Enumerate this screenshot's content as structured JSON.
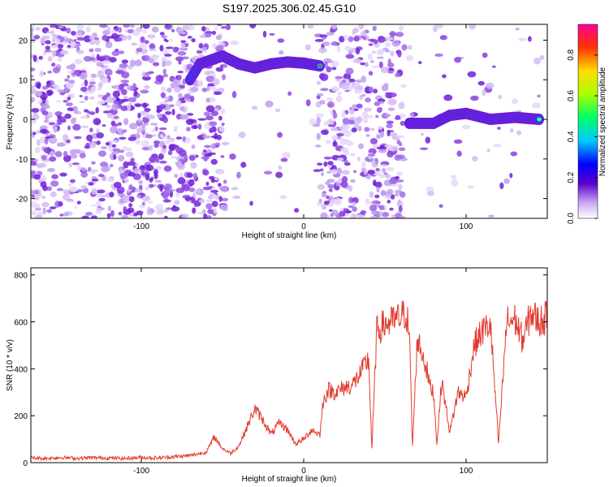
{
  "title": "S197.2025.306.02.45.G10",
  "colors": {
    "snr_line": "#e33a2e",
    "axes": "#000000"
  },
  "chart_data": [
    {
      "type": "heatmap",
      "xlabel": "Height of straight line (km)",
      "ylabel": "Frequency (Hz)",
      "xlim": [
        -168,
        150
      ],
      "ylim": [
        -25,
        24
      ],
      "x_ticks": [
        -100,
        0,
        100
      ],
      "y_ticks": [
        -20,
        -10,
        0,
        10,
        20
      ],
      "colorbar": {
        "label": "Normalized spectral amplitude",
        "range": [
          0,
          0.95
        ],
        "ticks": [
          0.0,
          0.2,
          0.4,
          0.6,
          0.8
        ]
      },
      "ridge": [
        {
          "x": -70,
          "y": 10
        },
        {
          "x": -64,
          "y": 14
        },
        {
          "x": -50,
          "y": 16
        },
        {
          "x": -40,
          "y": 14
        },
        {
          "x": -30,
          "y": 13
        },
        {
          "x": -20,
          "y": 14
        },
        {
          "x": -10,
          "y": 14.5
        },
        {
          "x": 0,
          "y": 14.2
        },
        {
          "x": 10,
          "y": 13.5
        },
        {
          "x": 65,
          "y": -1
        },
        {
          "x": 80,
          "y": -1
        },
        {
          "x": 90,
          "y": 1
        },
        {
          "x": 100,
          "y": 1.5
        },
        {
          "x": 115,
          "y": 0
        },
        {
          "x": 130,
          "y": 0.5
        },
        {
          "x": 145,
          "y": 0
        }
      ]
    },
    {
      "type": "line",
      "xlabel": "Height of straight line (km)",
      "ylabel": "SNR (10 * v/v)",
      "xlim": [
        -168,
        150
      ],
      "ylim": [
        0,
        830
      ],
      "x_ticks": [
        -100,
        0,
        100
      ],
      "y_ticks": [
        0,
        200,
        400,
        600,
        800
      ],
      "series": [
        {
          "x": [
            -168,
            -160,
            -150,
            -140,
            -130,
            -120,
            -110,
            -100,
            -90,
            -80,
            -70,
            -60,
            -55,
            -50,
            -45,
            -40,
            -35,
            -30,
            -25,
            -20,
            -15,
            -10,
            -5,
            0,
            5,
            10,
            12,
            15,
            20,
            25,
            30,
            35,
            38,
            40,
            42,
            45,
            50,
            55,
            60,
            63,
            65,
            67,
            70,
            75,
            78,
            80,
            82,
            85,
            90,
            95,
            100,
            105,
            110,
            115,
            120,
            125,
            130,
            135,
            140,
            145,
            150
          ],
          "values": [
            20,
            18,
            22,
            19,
            21,
            20,
            18,
            22,
            20,
            25,
            30,
            45,
            110,
            60,
            40,
            70,
            150,
            230,
            180,
            120,
            170,
            140,
            80,
            100,
            140,
            120,
            260,
            310,
            300,
            320,
            330,
            380,
            420,
            440,
            60,
            560,
            590,
            600,
            620,
            640,
            560,
            70,
            530,
            420,
            320,
            300,
            80,
            350,
            130,
            300,
            280,
            500,
            560,
            590,
            80,
            600,
            610,
            520,
            640,
            600,
            620
          ]
        }
      ]
    }
  ]
}
